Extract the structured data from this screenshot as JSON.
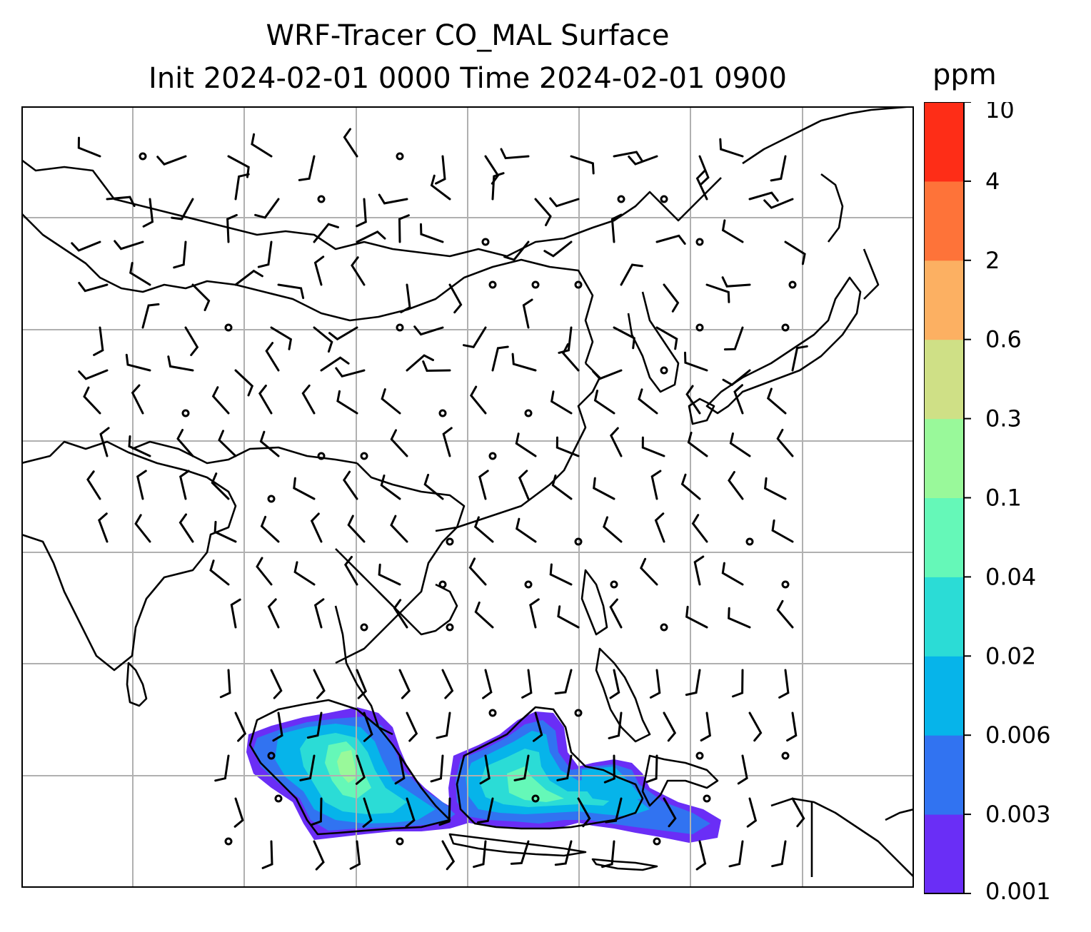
{
  "title": {
    "line1": "WRF-Tracer CO_MAL Surface",
    "line2": "Init 2024-02-01 0000 Time 2024-02-01 0900"
  },
  "colorbar": {
    "unit": "ppm",
    "levels": [
      "0.001",
      "0.003",
      "0.006",
      "0.02",
      "0.04",
      "0.1",
      "0.3",
      "0.6",
      "2",
      "4",
      "10"
    ],
    "colors": [
      "#6a2ef6",
      "#3173f1",
      "#06b4ea",
      "#2bdcd6",
      "#65f8b8",
      "#99f99a",
      "#cfe086",
      "#fcb062",
      "#fe7339",
      "#fe2d17"
    ]
  },
  "map": {
    "background": "#ffffff",
    "gridlines": true,
    "grid_color": "#b0b0b0",
    "coastline_color": "#000000",
    "wind_barbs": true
  }
}
